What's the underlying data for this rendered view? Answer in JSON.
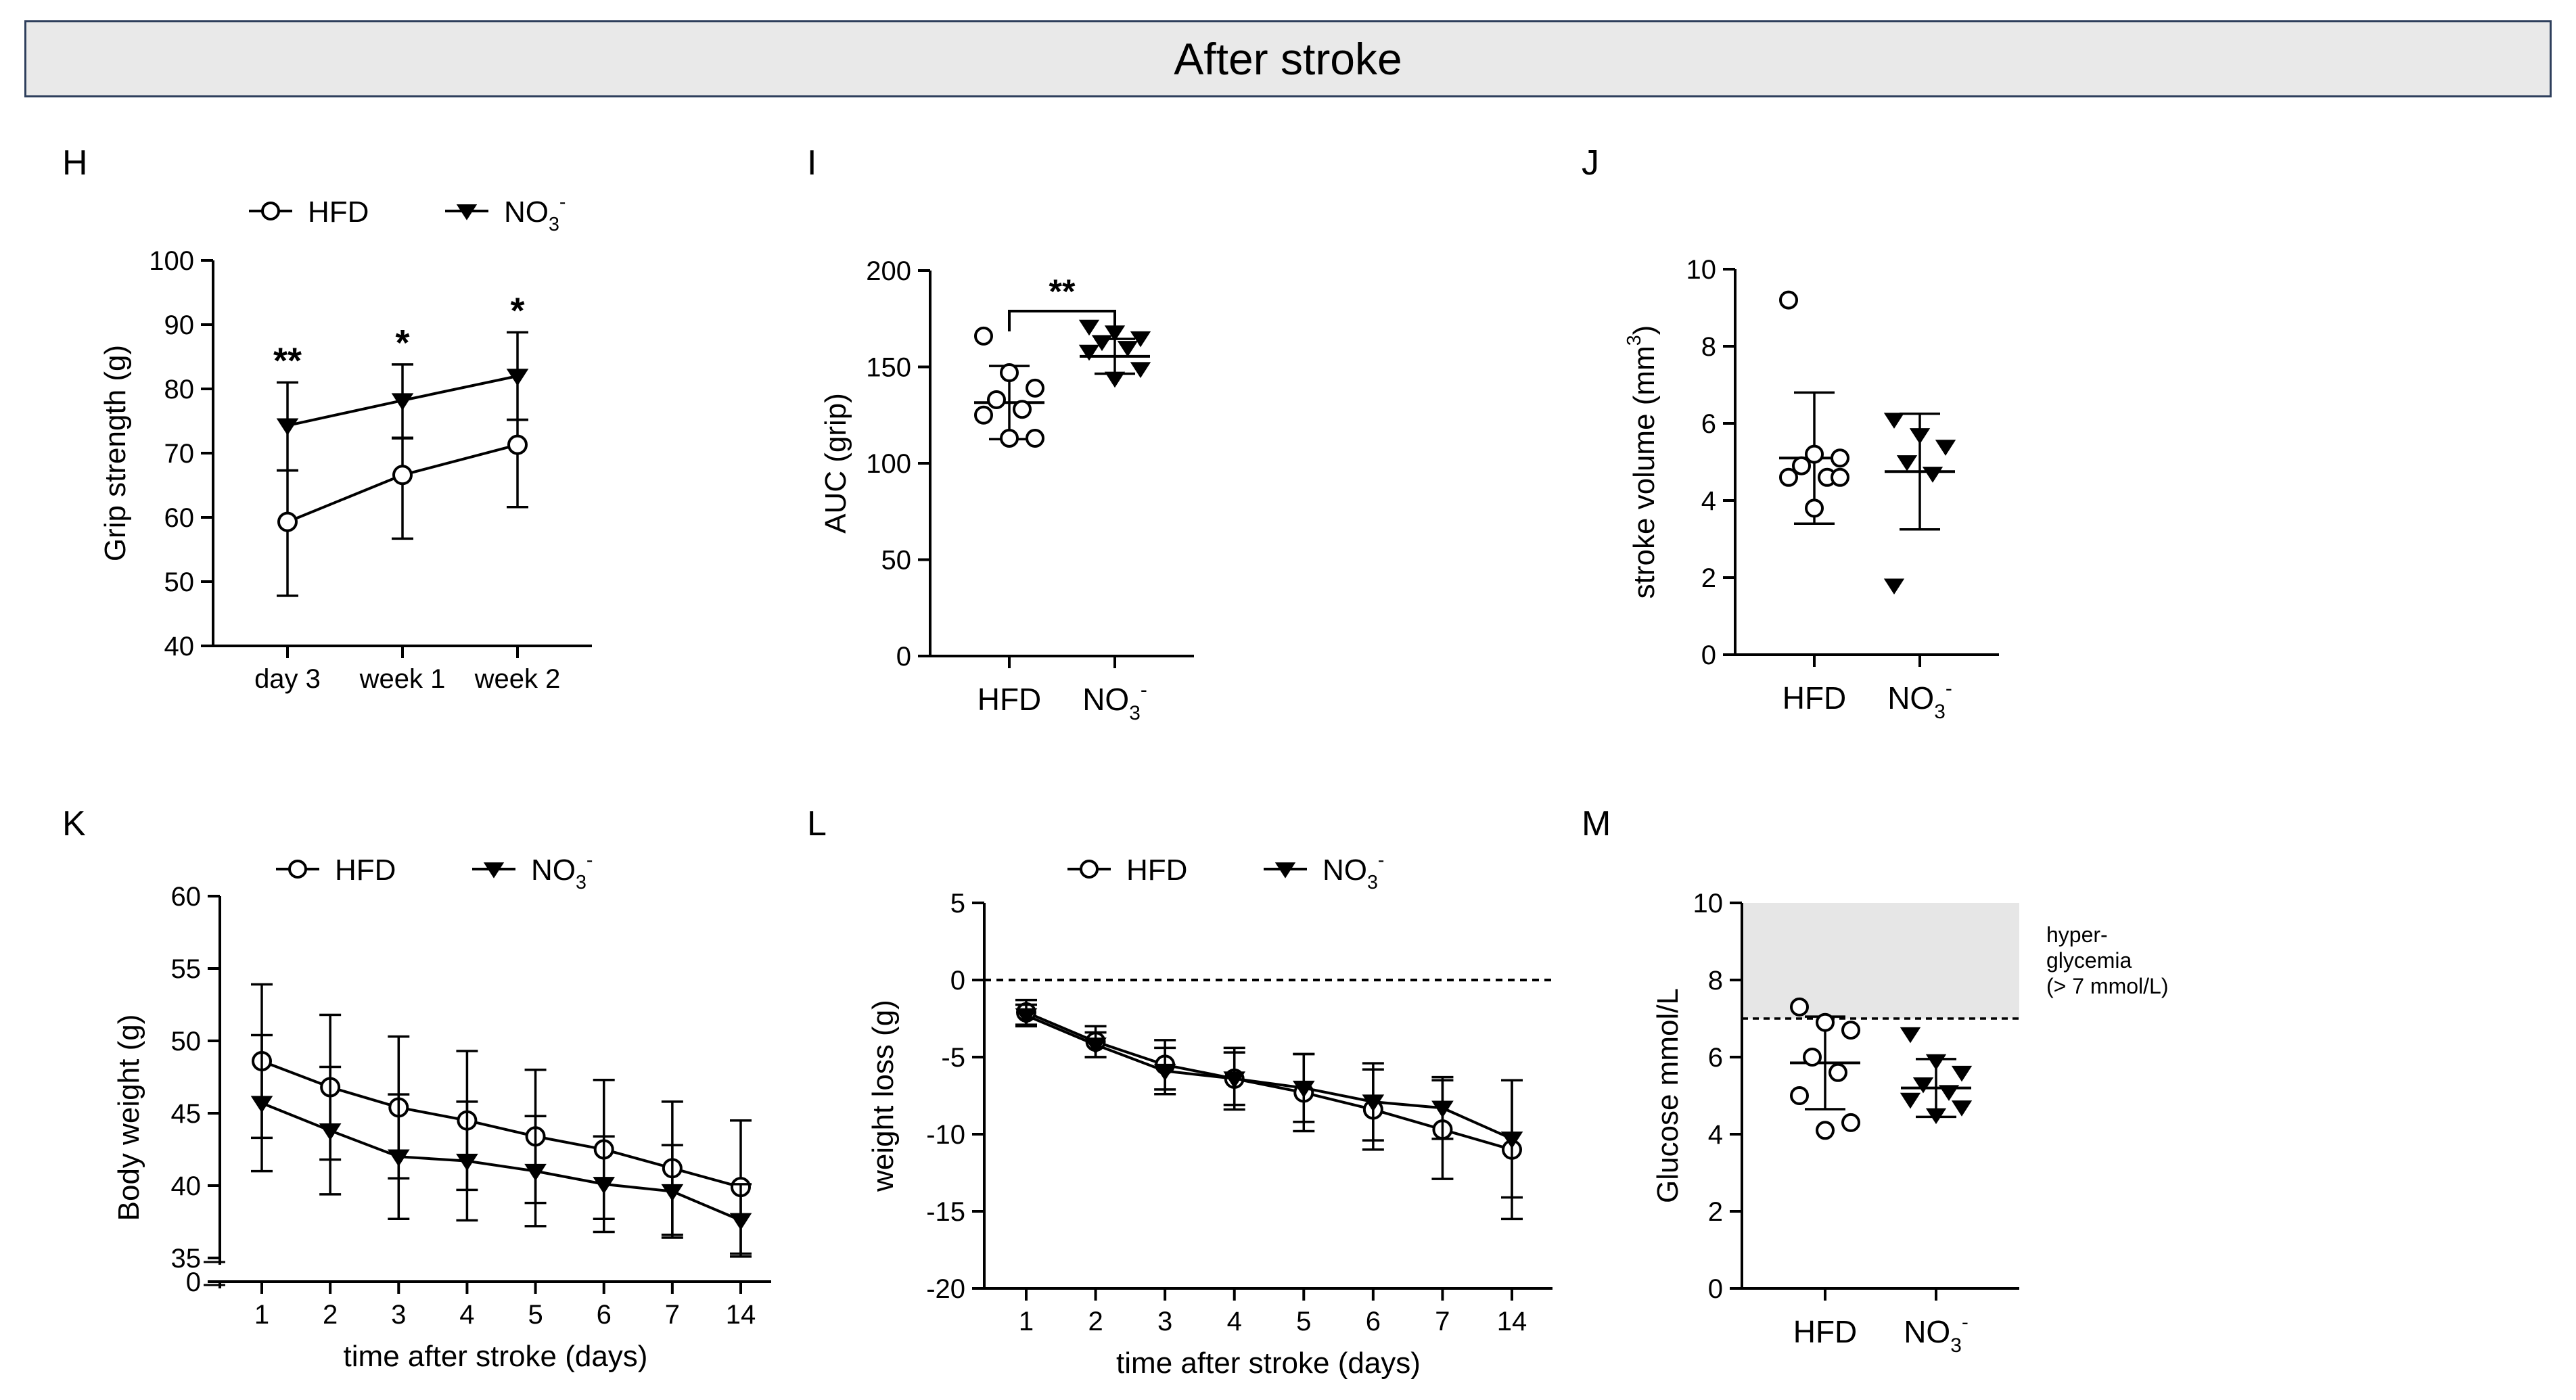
{
  "header": {
    "title": "After stroke"
  },
  "chart_data": [
    {
      "id": "H",
      "panel_letter": "H",
      "type": "line",
      "ylabel": "Grip strength (g)",
      "xlabel": "",
      "categories": [
        "day 3",
        "week 1",
        "week 2"
      ],
      "yticks": [
        "40",
        "50",
        "60",
        "70",
        "80",
        "90",
        "100"
      ],
      "ylim": [
        40,
        100
      ],
      "legend": [
        "HFD",
        "NO₃⁻"
      ],
      "series": [
        {
          "name": "HFD",
          "marker": "circle",
          "values": [
            59.3,
            66.6,
            71.3
          ],
          "err_low": [
            11.5,
            9.9,
            9.7
          ],
          "err_high": [
            8,
            5.8,
            3.9
          ]
        },
        {
          "name": "NO₃⁻",
          "marker": "triangle",
          "values": [
            74.3,
            78.2,
            82
          ],
          "err_low": [
            7,
            5.9,
            6.8
          ],
          "err_high": [
            6.7,
            5.6,
            6.8
          ]
        }
      ],
      "annotations": [
        "**",
        "*",
        "*"
      ]
    },
    {
      "id": "I",
      "panel_letter": "I",
      "type": "scatter",
      "ylabel": "AUC (grip)",
      "categories": [
        "HFD",
        "NO₃⁻"
      ],
      "yticks": [
        "0",
        "50",
        "100",
        "150",
        "200"
      ],
      "ylim": [
        0,
        200
      ],
      "groups": [
        {
          "name": "HFD",
          "marker": "circle",
          "points": [
            166,
            147,
            139,
            133,
            128,
            125,
            113,
            113
          ],
          "mean": 131.5,
          "sd": 19
        },
        {
          "name": "NO₃⁻",
          "marker": "triangle",
          "points": [
            171,
            168,
            165,
            163,
            160,
            158,
            149,
            144
          ],
          "mean": 155.5,
          "sd": 9
        }
      ],
      "significance": "**"
    },
    {
      "id": "J",
      "panel_letter": "J",
      "type": "scatter",
      "ylabel": "stroke volume (mm³)",
      "categories": [
        "HFD",
        "NO₃⁻"
      ],
      "yticks": [
        "0",
        "2",
        "4",
        "6",
        "8",
        "10"
      ],
      "ylim": [
        0,
        10
      ],
      "groups": [
        {
          "name": "HFD",
          "marker": "circle",
          "points": [
            9.2,
            5.2,
            5.1,
            4.9,
            4.6,
            4.6,
            4.6,
            3.8
          ],
          "mean": 5.1,
          "sd": 1.7
        },
        {
          "name": "NO₃⁻",
          "marker": "triangle",
          "points": [
            6.1,
            5.7,
            5.4,
            5,
            4.7,
            1.8
          ],
          "mean": 4.75,
          "sd": 1.5
        }
      ]
    },
    {
      "id": "K",
      "panel_letter": "K",
      "type": "line",
      "ylabel": "Body weight (g)",
      "xlabel": "time after stroke (days)",
      "categories": [
        "1",
        "2",
        "3",
        "4",
        "5",
        "6",
        "7",
        "14"
      ],
      "yticks": [
        "0",
        "35",
        "40",
        "45",
        "50",
        "55",
        "60"
      ],
      "axis_break": [
        0,
        35
      ],
      "ylim": [
        35,
        60
      ],
      "legend": [
        "HFD",
        "NO₃⁻"
      ],
      "series": [
        {
          "name": "HFD",
          "marker": "circle",
          "values": [
            48.6,
            46.8,
            45.4,
            44.5,
            43.4,
            42.5,
            41.2,
            39.9
          ],
          "err": [
            5.3,
            5,
            4.9,
            4.8,
            4.6,
            4.8,
            4.6,
            4.6
          ]
        },
        {
          "name": "NO₃⁻",
          "marker": "triangle",
          "values": [
            45.7,
            43.8,
            42,
            41.7,
            41,
            40.1,
            39.6,
            37.6
          ],
          "err": [
            4.7,
            4.4,
            4.3,
            4.1,
            3.8,
            3.3,
            3.2,
            2.5
          ]
        }
      ]
    },
    {
      "id": "L",
      "panel_letter": "L",
      "type": "line",
      "ylabel": "weight loss (g)",
      "xlabel": "time after stroke (days)",
      "categories": [
        "1",
        "2",
        "3",
        "4",
        "5",
        "6",
        "7",
        "14"
      ],
      "yticks": [
        "-20",
        "-15",
        "-10",
        "-5",
        "0",
        "5"
      ],
      "ylim": [
        -20,
        5
      ],
      "reference_line_y": 0,
      "legend": [
        "HFD",
        "NO₃⁻"
      ],
      "series": [
        {
          "name": "HFD",
          "marker": "circle",
          "values": [
            -2.1,
            -4,
            -5.5,
            -6.4,
            -7.3,
            -8.4,
            -9.7,
            -11
          ],
          "err": [
            0.8,
            1,
            1.6,
            2,
            2.5,
            2.6,
            3.2,
            4.5
          ]
        },
        {
          "name": "NO₃⁻",
          "marker": "triangle",
          "values": [
            -2.3,
            -4.2,
            -5.9,
            -6.4,
            -7,
            -7.9,
            -8.3,
            -10.3
          ],
          "err": [
            0.7,
            0.8,
            1.5,
            1.7,
            2.2,
            2.5,
            2,
            3.8
          ]
        }
      ]
    },
    {
      "id": "M",
      "panel_letter": "M",
      "type": "scatter",
      "ylabel": "Glucose mmol/L",
      "categories": [
        "HFD",
        "NO₃⁻"
      ],
      "yticks": [
        "0",
        "2",
        "4",
        "6",
        "8",
        "10"
      ],
      "ylim": [
        0,
        10
      ],
      "threshold": 7,
      "region_label": [
        "hyper-",
        "glycemia",
        "(> 7 mmol/L)"
      ],
      "groups": [
        {
          "name": "HFD",
          "marker": "circle",
          "points": [
            7.3,
            6.9,
            6.7,
            6,
            5.6,
            5,
            4.3,
            4.1
          ],
          "mean": 5.85,
          "sd": 1.2
        },
        {
          "name": "NO₃⁻",
          "marker": "triangle",
          "points": [
            6.6,
            5.9,
            5.6,
            5.3,
            5.1,
            4.9,
            4.7,
            4.5
          ],
          "mean": 5.2,
          "sd": 0.75
        }
      ]
    }
  ]
}
